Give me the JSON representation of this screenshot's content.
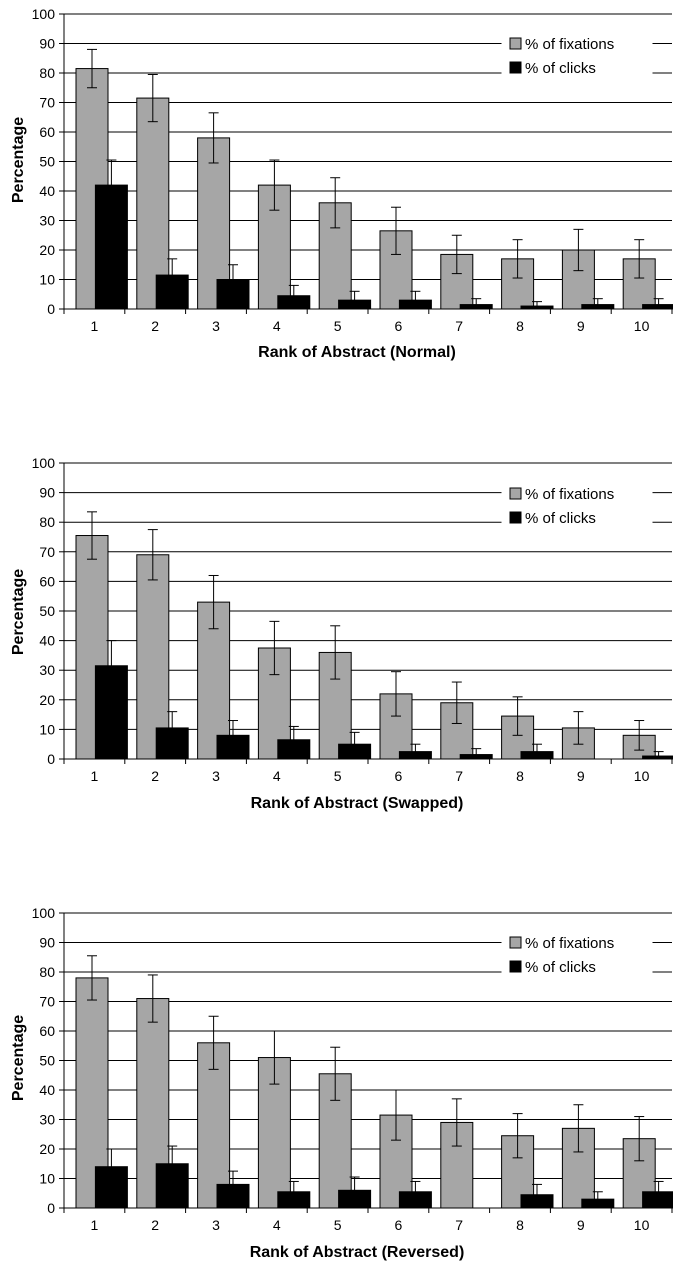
{
  "chart_data": [
    {
      "type": "bar",
      "xlabel": "Rank of Abstract (Normal)",
      "ylabel": "Percentage",
      "ylim": [
        0,
        100
      ],
      "yticks": [
        0,
        10,
        20,
        30,
        40,
        50,
        60,
        70,
        80,
        90,
        100
      ],
      "categories": [
        "1",
        "2",
        "3",
        "4",
        "5",
        "6",
        "7",
        "8",
        "9",
        "10"
      ],
      "grid": "horizontal",
      "legend": "top-right",
      "series": [
        {
          "name": "% of fixations",
          "color": "#a6a6a6",
          "values": [
            81.5,
            71.5,
            58,
            42,
            36,
            26.5,
            18.5,
            17,
            20,
            17
          ],
          "error": [
            6.5,
            8,
            8.5,
            8.5,
            8.5,
            8,
            6.5,
            6.5,
            7,
            6.5
          ]
        },
        {
          "name": "% of clicks",
          "color": "#000000",
          "values": [
            42,
            11.5,
            10,
            4.5,
            3,
            3,
            1.5,
            1,
            1.5,
            1.5
          ],
          "error": [
            8.5,
            5.5,
            5,
            3.5,
            3,
            3,
            2,
            1.5,
            2,
            2
          ]
        }
      ]
    },
    {
      "type": "bar",
      "xlabel": "Rank of Abstract (Swapped)",
      "ylabel": "Percentage",
      "ylim": [
        0,
        100
      ],
      "yticks": [
        0,
        10,
        20,
        30,
        40,
        50,
        60,
        70,
        80,
        90,
        100
      ],
      "categories": [
        "1",
        "2",
        "3",
        "4",
        "5",
        "6",
        "7",
        "8",
        "9",
        "10"
      ],
      "grid": "horizontal",
      "legend": "top-right",
      "series": [
        {
          "name": "% of fixations",
          "color": "#a6a6a6",
          "values": [
            75.5,
            69,
            53,
            37.5,
            36,
            22,
            19,
            14.5,
            10.5,
            8
          ],
          "error": [
            8,
            8.5,
            9,
            9,
            9,
            7.5,
            7,
            6.5,
            5.5,
            5
          ]
        },
        {
          "name": "% of clicks",
          "color": "#000000",
          "values": [
            31.5,
            10.5,
            8,
            6.5,
            5,
            2.5,
            1.5,
            2.5,
            0,
            1
          ],
          "error": [
            8.5,
            5.5,
            5,
            4.5,
            4,
            2.5,
            2,
            2.5,
            0,
            1.5
          ]
        }
      ]
    },
    {
      "type": "bar",
      "xlabel": "Rank of Abstract (Reversed)",
      "ylabel": "Percentage",
      "ylim": [
        0,
        100
      ],
      "yticks": [
        0,
        10,
        20,
        30,
        40,
        50,
        60,
        70,
        80,
        90,
        100
      ],
      "categories": [
        "1",
        "2",
        "3",
        "4",
        "5",
        "6",
        "7",
        "8",
        "9",
        "10"
      ],
      "grid": "horizontal",
      "legend": "top-right",
      "series": [
        {
          "name": "% of fixations",
          "color": "#a6a6a6",
          "values": [
            78,
            71,
            56,
            51,
            45.5,
            31.5,
            29,
            24.5,
            27,
            23.5
          ],
          "error": [
            7.5,
            8,
            9,
            9,
            9,
            8.5,
            8,
            7.5,
            8,
            7.5
          ]
        },
        {
          "name": "% of clicks",
          "color": "#000000",
          "values": [
            14,
            15,
            8,
            5.5,
            6,
            5.5,
            0,
            4.5,
            3,
            5.5
          ],
          "error": [
            6,
            6,
            4.5,
            3.5,
            4.5,
            3.5,
            0,
            3.5,
            2.5,
            3.5
          ]
        }
      ]
    }
  ]
}
